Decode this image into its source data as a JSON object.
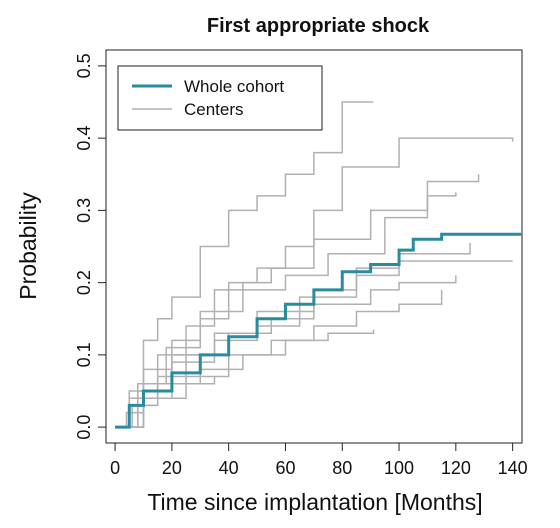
{
  "chart_data": {
    "type": "step",
    "title": "First appropriate shock",
    "x_label": "Time since implantation [Months]",
    "y_label": "Probability",
    "xlim": [
      -3.2,
      143.3
    ],
    "ylim": [
      -0.022,
      0.522
    ],
    "xticks": [
      0,
      20,
      40,
      60,
      80,
      100,
      120,
      140
    ],
    "yticks": [
      {
        "value": 0,
        "label": "0.0"
      },
      0.1,
      0.2,
      0.3,
      0.4,
      0.5
    ],
    "legend": "top-left",
    "series": [
      {
        "name": "Whole cohort",
        "color": "#2a8a9e",
        "x": [
          0,
          5,
          10,
          20,
          30,
          40,
          50,
          60,
          70,
          80,
          90,
          100,
          105,
          115,
          143
        ],
        "values": [
          0,
          0.03,
          0.05,
          0.075,
          0.1,
          0.125,
          0.15,
          0.17,
          0.19,
          0.215,
          0.225,
          0.245,
          0.26,
          0.267,
          0.267
        ]
      },
      {
        "name": "Centers",
        "color": "#b0b0b0",
        "lines": [
          {
            "x": [
              0,
              5,
              10,
              15,
              20,
              30,
              40,
              50,
              60,
              70,
              80,
              91
            ],
            "values": [
              0,
              0.05,
              0.12,
              0.15,
              0.18,
              0.25,
              0.3,
              0.32,
              0.35,
              0.38,
              0.45,
              0.45
            ]
          },
          {
            "x": [
              0,
              10,
              20,
              30,
              40,
              50,
              60,
              70,
              80,
              100,
              140
            ],
            "values": [
              0,
              0.08,
              0.12,
              0.15,
              0.2,
              0.22,
              0.25,
              0.3,
              0.36,
              0.4,
              0.395
            ]
          },
          {
            "x": [
              0,
              5,
              15,
              25,
              35,
              45,
              55,
              70,
              90,
              110,
              128
            ],
            "values": [
              0,
              0.04,
              0.1,
              0.14,
              0.19,
              0.2,
              0.22,
              0.26,
              0.3,
              0.34,
              0.35
            ]
          },
          {
            "x": [
              0,
              8,
              18,
              30,
              45,
              60,
              75,
              95,
              110,
              120
            ],
            "values": [
              0,
              0.06,
              0.11,
              0.16,
              0.19,
              0.21,
              0.24,
              0.29,
              0.32,
              0.325
            ]
          },
          {
            "x": [
              0,
              10,
              20,
              35,
              50,
              65,
              85,
              100,
              125
            ],
            "values": [
              0,
              0.05,
              0.09,
              0.12,
              0.14,
              0.18,
              0.21,
              0.24,
              0.255
            ]
          },
          {
            "x": [
              0,
              6,
              15,
              25,
              40,
              55,
              70,
              90,
              100,
              120
            ],
            "values": [
              0,
              0.03,
              0.07,
              0.1,
              0.13,
              0.15,
              0.17,
              0.19,
              0.2,
              0.21
            ]
          },
          {
            "x": [
              0,
              10,
              25,
              40,
              55,
              70,
              85,
              100,
              115
            ],
            "values": [
              0,
              0.04,
              0.07,
              0.1,
              0.12,
              0.14,
              0.16,
              0.17,
              0.19
            ]
          },
          {
            "x": [
              0,
              5,
              15,
              30,
              45,
              60,
              75,
              91
            ],
            "values": [
              0,
              0.03,
              0.06,
              0.08,
              0.1,
              0.12,
              0.13,
              0.135
            ]
          },
          {
            "x": [
              0,
              4,
              10,
              20,
              35
            ],
            "values": [
              0,
              0.02,
              0.04,
              0.06,
              0.07
            ]
          },
          {
            "x": [
              0,
              8,
              20,
              35,
              50,
              70,
              85,
              100,
              140
            ],
            "values": [
              0,
              0.05,
              0.1,
              0.13,
              0.16,
              0.19,
              0.22,
              0.23,
              0.23
            ]
          }
        ]
      }
    ]
  }
}
